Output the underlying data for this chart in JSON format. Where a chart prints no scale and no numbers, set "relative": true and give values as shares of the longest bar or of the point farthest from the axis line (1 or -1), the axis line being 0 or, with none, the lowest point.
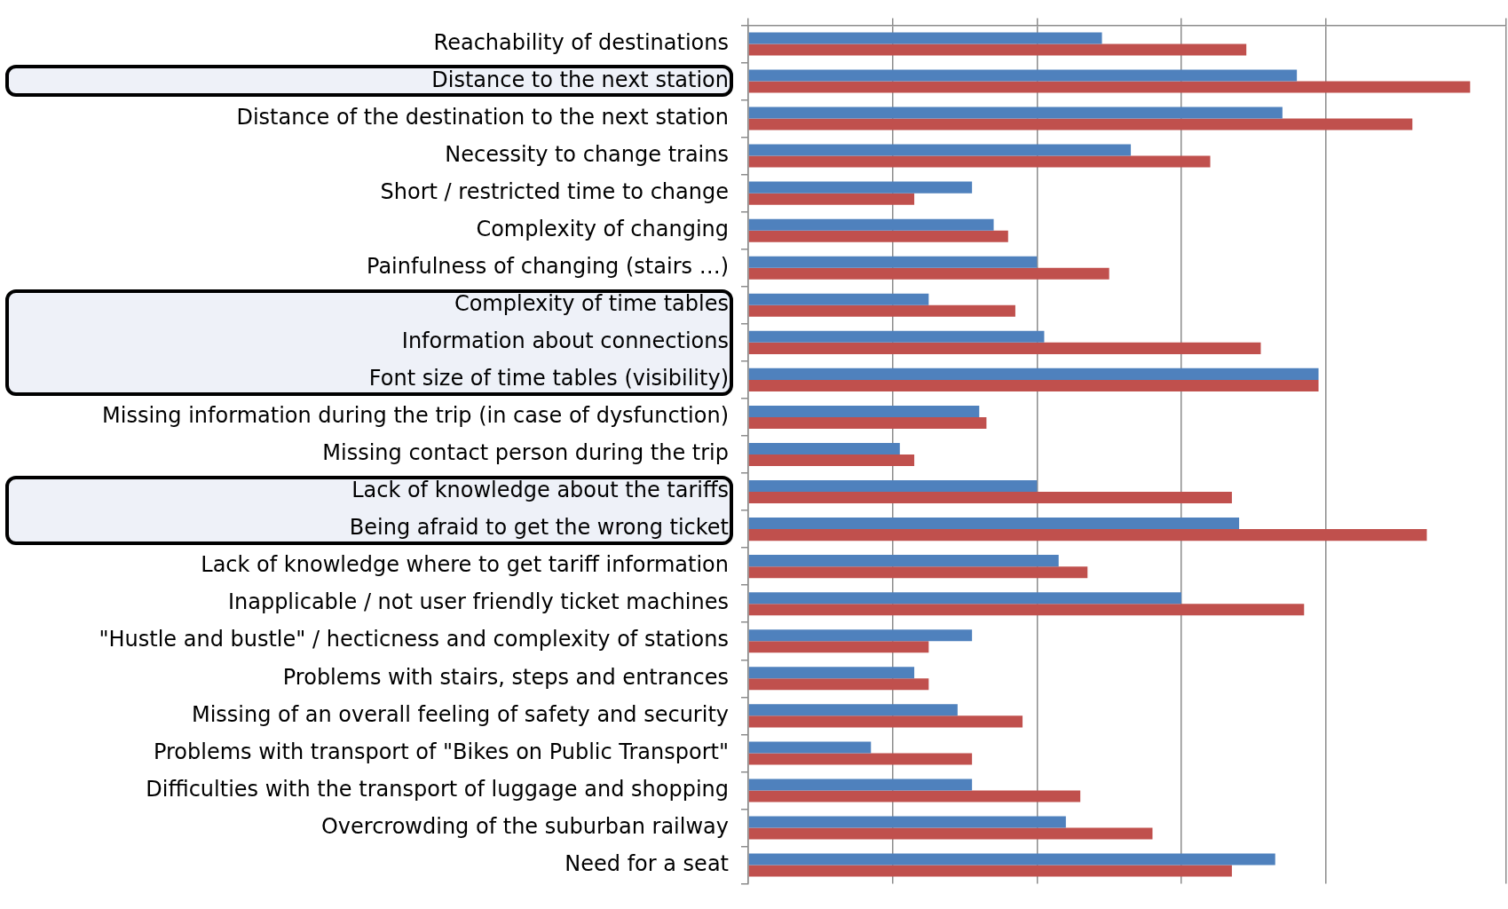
{
  "chart_data": {
    "type": "bar",
    "orientation": "horizontal",
    "relative": true,
    "grid": "x",
    "legend": false,
    "categories": [
      "Reachability of destinations",
      "Distance to the next station",
      "Distance of the destination to the next station",
      "Necessity to change trains",
      "Short / restricted time to change",
      "Complexity of changing",
      "Painfulness of changing (stairs …)",
      "Complexity of time tables",
      "Information about connections",
      "Font size of time tables (visibility)",
      "Missing information during the trip (in case of dysfunction)",
      "Missing contact person during the trip",
      "Lack of knowledge about the tariffs",
      "Being afraid to get the wrong ticket",
      "Lack of knowledge where to get tariff information",
      "Inapplicable / not user friendly ticket machines",
      "\"Hustle and bustle\" / hecticness and complexity of stations",
      "Problems with stairs, steps and entrances",
      "Missing of an overall feeling of safety and security",
      "Problems with transport of \"Bikes on Public Transport\"",
      "Difficulties with the transport of luggage and shopping",
      "Overcrowding of the suburban railway",
      "Need for a seat"
    ],
    "series": [
      {
        "color": "#4f81bd",
        "values": [
          0.49,
          0.76,
          0.74,
          0.53,
          0.31,
          0.34,
          0.4,
          0.25,
          0.41,
          0.79,
          0.32,
          0.21,
          0.4,
          0.68,
          0.43,
          0.6,
          0.31,
          0.23,
          0.29,
          0.17,
          0.31,
          0.44,
          0.73
        ]
      },
      {
        "color": "#c0504d",
        "values": [
          0.69,
          1,
          0.92,
          0.64,
          0.23,
          0.36,
          0.5,
          0.37,
          0.71,
          0.79,
          0.33,
          0.23,
          0.67,
          0.94,
          0.47,
          0.77,
          0.25,
          0.25,
          0.38,
          0.31,
          0.46,
          0.56,
          0.67
        ]
      }
    ]
  }
}
